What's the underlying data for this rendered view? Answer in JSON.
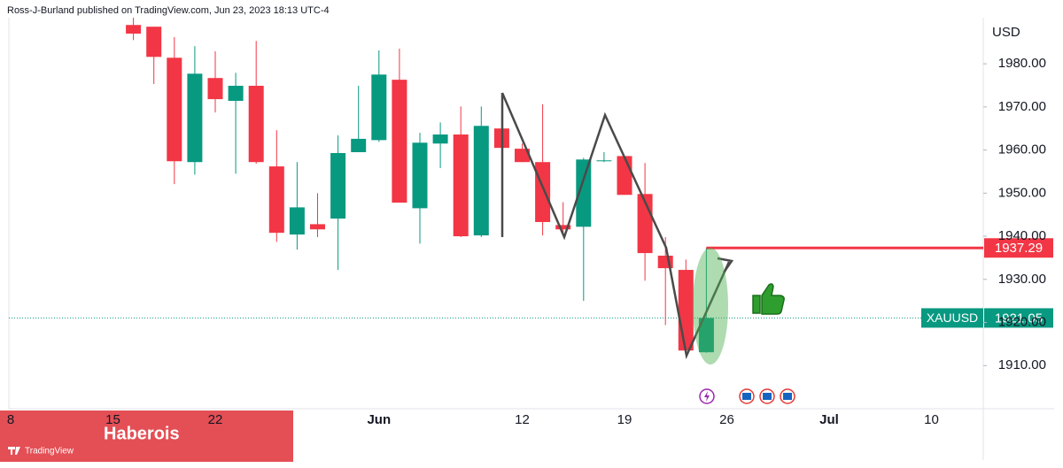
{
  "chart_data": {
    "type": "candlestick",
    "title": "Ross-J-Burland published on TradingView.com, Jun 23, 2023 18:13 UTC-4",
    "y_axis_label": "USD",
    "categories": [
      "8",
      null,
      null,
      null,
      null,
      "15",
      null,
      null,
      null,
      null,
      "22",
      null,
      null,
      null,
      null,
      null,
      null,
      null,
      "Jun",
      null,
      null,
      null,
      null,
      null,
      null,
      "12",
      null,
      null,
      null,
      null,
      "19",
      null,
      null,
      null,
      null,
      "26",
      null,
      null,
      null,
      null,
      "Jul",
      null,
      null,
      null,
      null,
      "10"
    ],
    "open": [
      null,
      null,
      null,
      null,
      null,
      null,
      1989,
      1988.6,
      1981.4,
      1957.2,
      1976.7,
      1971.4,
      1974.9,
      1956.2,
      1940.4,
      1942.8,
      1944.1,
      1959.5,
      1962.3,
      1976.3,
      1946.5,
      1961.5,
      1963.6,
      1940.2,
      1965,
      1960.3,
      1957.2,
      1942.6,
      1942.2,
      1957.4,
      1958.6,
      1949.8,
      1935.5,
      1932.2,
      1913.1,
      null,
      null,
      null,
      null,
      null,
      null,
      null,
      null,
      null,
      null,
      null
    ],
    "high": [
      null,
      null,
      null,
      null,
      null,
      null,
      1991,
      1988.6,
      1986.2,
      1984.1,
      1982.9,
      1977.9,
      1985.3,
      1964.6,
      1957.2,
      1950,
      1963.4,
      1974.9,
      1983.1,
      1983.5,
      1964,
      1966.4,
      1970.1,
      1970.1,
      1968.4,
      1961.5,
      1970.6,
      1947.9,
      1958.2,
      1959.5,
      1958.6,
      1957,
      1939.8,
      1934.6,
      1937.29,
      null,
      null,
      null,
      null,
      null,
      null,
      null,
      null,
      null,
      null,
      null
    ],
    "low": [
      null,
      null,
      null,
      null,
      null,
      null,
      1985.5,
      1975.3,
      1952.1,
      1954.3,
      1968.7,
      1954.5,
      1956.8,
      1938.7,
      1936.9,
      1939.8,
      1932.2,
      1959.5,
      1961.9,
      1947.8,
      1938.3,
      1955.8,
      1939.8,
      1939.8,
      1960.5,
      1957.2,
      1940.2,
      1940.8,
      1925,
      1957.2,
      1949.6,
      1929.7,
      1919.4,
      1913.5,
      1913,
      null,
      null,
      null,
      null,
      null,
      null,
      null,
      null,
      null,
      null,
      null
    ],
    "close": [
      null,
      null,
      null,
      null,
      null,
      null,
      1987,
      1981.6,
      1957.4,
      1977.7,
      1971.8,
      1974.9,
      1957.2,
      1940.8,
      1946.7,
      1941.6,
      1959.3,
      1962.6,
      1977.5,
      1947.8,
      1961.7,
      1963.6,
      1940,
      1965.6,
      1960.5,
      1957.2,
      1943.3,
      1941.6,
      1957.8,
      1957.6,
      1949.6,
      1936.1,
      1932.6,
      1913.5,
      1921.05,
      null,
      null,
      null,
      null,
      null,
      null,
      null,
      null,
      null,
      null,
      null
    ],
    "up_color": "#089981",
    "down_color": "#f23645",
    "ylim": [
      1900,
      1995
    ],
    "yticks": [
      {
        "value": 1910,
        "label": "1910.00"
      },
      {
        "value": 1920,
        "label": "1920.00"
      },
      {
        "value": 1930,
        "label": "1930.00"
      },
      {
        "value": 1940,
        "label": "1940.00"
      },
      {
        "value": 1950,
        "label": "1950.00"
      },
      {
        "value": 1960,
        "label": "1960.00"
      },
      {
        "value": 1970,
        "label": "1970.00"
      },
      {
        "value": 1980,
        "label": "1980.00"
      }
    ],
    "grid": false,
    "horizontal_line": {
      "value": 1937.29,
      "color": "#f23645"
    },
    "last_price": {
      "symbol": "XAUUSD",
      "value": 1921.05,
      "color": "#089981"
    },
    "overlay_text": "Haberois",
    "watermark": "TradingView"
  }
}
